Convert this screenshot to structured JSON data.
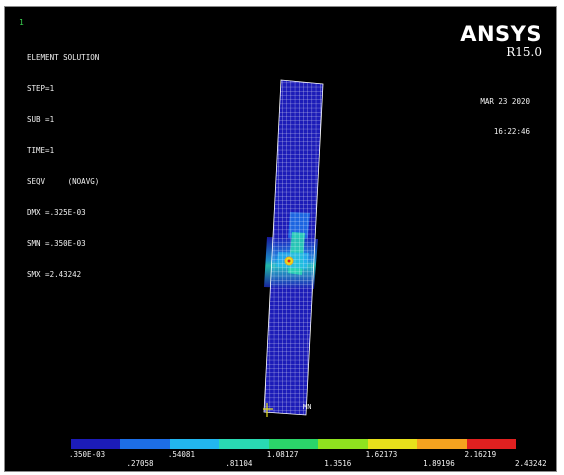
{
  "window": {
    "number": "1"
  },
  "plot_info": {
    "title": "ELEMENT SOLUTION",
    "lines": [
      "STEP=1",
      "SUB =1",
      "TIME=1",
      "SEQV     (NOAVG)",
      "DMX =.325E-03",
      "SMN =.350E-03",
      "SMX =2.43242"
    ]
  },
  "brand": {
    "name": "ANSYS",
    "release": "R15.0"
  },
  "timestamp": {
    "date": "MAR 23 2020",
    "time": "16:22:46"
  },
  "model": {
    "node_label": "MN"
  },
  "contour_legend": {
    "colors": [
      "#1c1cb8",
      "#1d6ee6",
      "#22b6ee",
      "#29d9b2",
      "#2bd46a",
      "#8fe21f",
      "#e7e01b",
      "#f5a21f",
      "#e02020"
    ],
    "labels_top": [
      ".350E-03",
      ".54081",
      "1.08127",
      "1.62173",
      "2.16219"
    ],
    "labels_bottom": [
      ".27058",
      ".81104",
      "1.3516",
      "1.89196",
      "2.43242"
    ]
  }
}
